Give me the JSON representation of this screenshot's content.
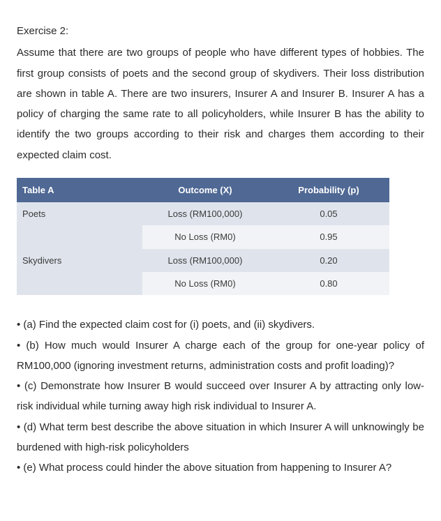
{
  "heading": "Exercise 2:",
  "paragraph": "Assume that there are two groups of people who have different types of hobbies. The first group consists of poets and the second group of skydivers. Their loss distribution are shown in table A. There are two insurers, Insurer A and Insurer B. Insurer A has a policy of charging the same rate to all policyholders, while Insurer B has the ability to identify the two groups according to their risk and charges them according to their expected claim cost.",
  "table": {
    "title": "Table A",
    "headers": {
      "outcome": "Outcome (X)",
      "probability": "Probability (p)"
    },
    "groups": [
      {
        "name": "Poets",
        "rows": [
          {
            "outcome": "Loss (RM100,000)",
            "prob": "0.05"
          },
          {
            "outcome": "No Loss (RM0)",
            "prob": "0.95"
          }
        ]
      },
      {
        "name": "Skydivers",
        "rows": [
          {
            "outcome": "Loss (RM100,000)",
            "prob": "0.20"
          },
          {
            "outcome": "No Loss (RM0)",
            "prob": "0.80"
          }
        ]
      }
    ],
    "header_bg": "#4f6894",
    "header_text_color": "#ffffff",
    "row_odd_bg": "#dfe4ec",
    "row_even_bg": "#f2f3f6"
  },
  "questions": [
    "• (a) Find the expected claim cost for (i) poets, and (ii) skydivers.",
    "• (b) How much would Insurer A charge each of the group for one-year policy of RM100,000 (ignoring investment returns, administration costs and profit loading)?",
    "• (c) Demonstrate how Insurer B would succeed over Insurer A by attracting only low-risk individual while turning away high risk individual to Insurer A.",
    "• (d) What term best describe the above situation in which Insurer A will unknowingly be burdened with high-risk policyholders",
    "• (e) What process could hinder the above situation from happening to Insurer A?"
  ]
}
